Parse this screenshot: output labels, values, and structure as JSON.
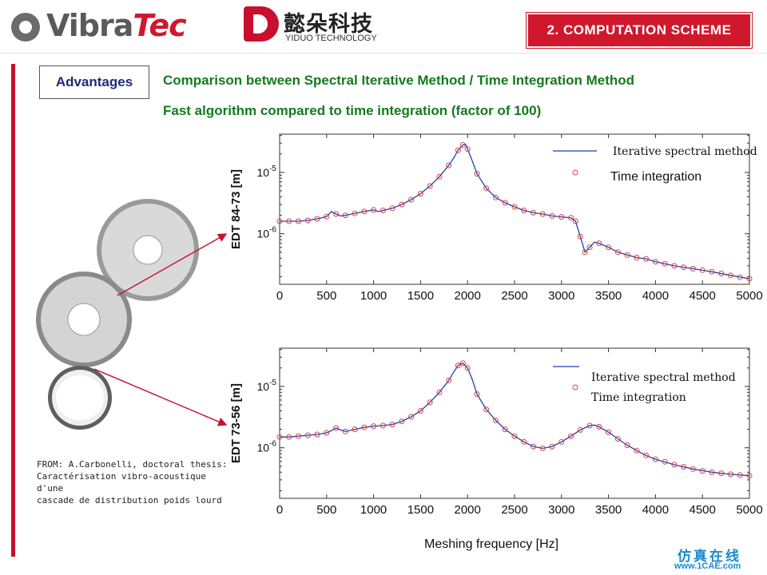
{
  "header": {
    "brand_left_a": "Vibra",
    "brand_left_b": "Tec",
    "brand_right_cn": "懿朵科技",
    "brand_right_en": "YIDUO TECHNOLOGY",
    "section_title": "2. COMPUTATION SCHEME",
    "accent_color": "#d0182d"
  },
  "content": {
    "advantages_label": "Advantages",
    "line1": "Comparison between Spectral Iterative Method / Time Integration Method",
    "line2": "Fast algorithm compared to time integration (factor of 100)",
    "source_lines": [
      "FROM: A.Carbonelli, doctoral thesis:",
      "Caractérisation vibro-acoustique d'une",
      "cascade de distribution poids lourd"
    ],
    "xlabel": "Meshing frequency [Hz]"
  },
  "watermark": {
    "cn": "仿真在线",
    "en": "www.1CAE.com"
  },
  "chart_data": [
    {
      "type": "line",
      "ylabel": "EDT 84-73 [m]",
      "xlim": [
        0,
        5000
      ],
      "xticks": [
        0,
        500,
        1000,
        1500,
        2000,
        2500,
        3000,
        3500,
        4000,
        4500,
        5000
      ],
      "yscale": "log",
      "ytick_labels": [
        "10^-5",
        "10^-6"
      ],
      "legend": [
        "Iterative spectral method",
        "Time integration"
      ],
      "legend_position": "top-right",
      "series": [
        {
          "name": "Iterative spectral method",
          "color": "#1f3fb0",
          "x": [
            0,
            100,
            200,
            300,
            400,
            500,
            550,
            600,
            650,
            700,
            800,
            900,
            1000,
            1050,
            1100,
            1200,
            1300,
            1400,
            1500,
            1600,
            1700,
            1800,
            1850,
            1900,
            1950,
            1980,
            2000,
            2050,
            2100,
            2200,
            2300,
            2400,
            2500,
            2600,
            2700,
            2800,
            2900,
            3000,
            3100,
            3150,
            3200,
            3250,
            3300,
            3350,
            3400,
            3500,
            3600,
            3700,
            3800,
            3900,
            4000,
            4200,
            4400,
            4600,
            4800,
            5000
          ],
          "y": [
            1.6e-06,
            1.6e-06,
            1.6e-06,
            1.65e-06,
            1.75e-06,
            1.9e-06,
            2.3e-06,
            2.1e-06,
            1.95e-06,
            2e-06,
            2.15e-06,
            2.3e-06,
            2.45e-06,
            2.3e-06,
            2.4e-06,
            2.6e-06,
            3e-06,
            3.6e-06,
            4.5e-06,
            6e-06,
            8.5e-06,
            1.3e-05,
            1.7e-05,
            2.3e-05,
            2.8e-05,
            2.85e-05,
            2.4e-05,
            1.55e-05,
            9.5e-06,
            5.5e-06,
            3.9e-06,
            3.2e-06,
            2.75e-06,
            2.4e-06,
            2.2e-06,
            2.1e-06,
            1.95e-06,
            1.88e-06,
            1.82e-06,
            1.6e-06,
            9e-07,
            5e-07,
            6e-07,
            7.3e-07,
            7e-07,
            6e-07,
            5e-07,
            4.5e-07,
            4.1e-07,
            3.9e-07,
            3.5e-07,
            3e-07,
            2.7e-07,
            2.4e-07,
            2.1e-07,
            1.85e-07
          ]
        },
        {
          "name": "Time integration",
          "color": "#e04040",
          "x": [
            0,
            100,
            200,
            300,
            400,
            500,
            600,
            700,
            800,
            900,
            1000,
            1100,
            1200,
            1300,
            1400,
            1500,
            1600,
            1700,
            1800,
            1900,
            1950,
            2000,
            2100,
            2200,
            2300,
            2400,
            2500,
            2600,
            2700,
            2800,
            2900,
            3000,
            3100,
            3150,
            3200,
            3250,
            3300,
            3400,
            3500,
            3600,
            3700,
            3800,
            3900,
            4000,
            4100,
            4200,
            4300,
            4400,
            4500,
            4600,
            4700,
            4800,
            4900,
            5000
          ],
          "y": [
            1.6e-06,
            1.6e-06,
            1.6e-06,
            1.65e-06,
            1.75e-06,
            1.9e-06,
            2.1e-06,
            2e-06,
            2.15e-06,
            2.3e-06,
            2.45e-06,
            2.4e-06,
            2.6e-06,
            3e-06,
            3.6e-06,
            4.5e-06,
            6e-06,
            8.5e-06,
            1.3e-05,
            2.3e-05,
            2.8e-05,
            2.4e-05,
            9.5e-06,
            5.5e-06,
            3.9e-06,
            3.2e-06,
            2.75e-06,
            2.4e-06,
            2.2e-06,
            2.1e-06,
            1.95e-06,
            1.88e-06,
            1.82e-06,
            1.6e-06,
            9e-07,
            5e-07,
            6e-07,
            7e-07,
            6e-07,
            5e-07,
            4.5e-07,
            4.1e-07,
            3.9e-07,
            3.5e-07,
            3.25e-07,
            3e-07,
            2.85e-07,
            2.7e-07,
            2.55e-07,
            2.4e-07,
            2.25e-07,
            2.1e-07,
            1.95e-07,
            1.85e-07
          ]
        }
      ]
    },
    {
      "type": "line",
      "ylabel": "EDT 73-56 [m]",
      "xlim": [
        0,
        5000
      ],
      "xticks": [
        0,
        500,
        1000,
        1500,
        2000,
        2500,
        3000,
        3500,
        4000,
        4500,
        5000
      ],
      "yscale": "log",
      "ytick_labels": [
        "10^-5",
        "10^-6"
      ],
      "legend": [
        "Iterative spectral method",
        "Time integration"
      ],
      "legend_position": "top-right",
      "series": [
        {
          "name": "Iterative spectral method",
          "color": "#1f3fb0",
          "x": [
            0,
            100,
            200,
            300,
            400,
            500,
            550,
            600,
            650,
            700,
            800,
            900,
            1000,
            1100,
            1200,
            1300,
            1400,
            1500,
            1600,
            1700,
            1800,
            1850,
            1900,
            1950,
            2000,
            2050,
            2100,
            2200,
            2300,
            2400,
            2500,
            2600,
            2700,
            2800,
            2900,
            3000,
            3100,
            3200,
            3300,
            3350,
            3400,
            3500,
            3600,
            3700,
            3800,
            3900,
            4000,
            4200,
            4400,
            4600,
            4800,
            5000
          ],
          "y": [
            1.5e-06,
            1.5e-06,
            1.55e-06,
            1.6e-06,
            1.65e-06,
            1.75e-06,
            1.9e-06,
            2.1e-06,
            1.95e-06,
            1.85e-06,
            2e-06,
            2.15e-06,
            2.25e-06,
            2.3e-06,
            2.4e-06,
            2.7e-06,
            3.2e-06,
            4e-06,
            5.5e-06,
            8e-06,
            1.25e-05,
            1.7e-05,
            2.2e-05,
            2.4e-05,
            2e-05,
            1.3e-05,
            7.5e-06,
            4.2e-06,
            2.8e-06,
            2e-06,
            1.55e-06,
            1.25e-06,
            1.05e-06,
            9.8e-07,
            1.05e-06,
            1.25e-06,
            1.55e-06,
            1.95e-06,
            2.3e-06,
            2.35e-06,
            2.2e-06,
            1.8e-06,
            1.4e-06,
            1.1e-06,
            9e-07,
            7.5e-07,
            6.5e-07,
            5.3e-07,
            4.5e-07,
            4e-07,
            3.7e-07,
            3.5e-07
          ]
        },
        {
          "name": "Time integration",
          "color": "#e04040",
          "x": [
            0,
            100,
            200,
            300,
            400,
            500,
            600,
            700,
            800,
            900,
            1000,
            1100,
            1200,
            1300,
            1400,
            1500,
            1600,
            1700,
            1800,
            1900,
            1950,
            2000,
            2100,
            2200,
            2300,
            2400,
            2500,
            2600,
            2700,
            2800,
            2900,
            3000,
            3100,
            3200,
            3300,
            3400,
            3500,
            3600,
            3700,
            3800,
            3900,
            4000,
            4100,
            4200,
            4300,
            4400,
            4500,
            4600,
            4700,
            4800,
            4900,
            5000
          ],
          "y": [
            1.5e-06,
            1.5e-06,
            1.55e-06,
            1.6e-06,
            1.65e-06,
            1.75e-06,
            2.1e-06,
            1.85e-06,
            2e-06,
            2.15e-06,
            2.25e-06,
            2.3e-06,
            2.4e-06,
            2.7e-06,
            3.2e-06,
            4e-06,
            5.5e-06,
            8e-06,
            1.25e-05,
            2.2e-05,
            2.4e-05,
            2e-05,
            7.5e-06,
            4.2e-06,
            2.8e-06,
            2e-06,
            1.55e-06,
            1.25e-06,
            1.05e-06,
            9.8e-07,
            1.05e-06,
            1.25e-06,
            1.55e-06,
            1.95e-06,
            2.3e-06,
            2.2e-06,
            1.8e-06,
            1.4e-06,
            1.1e-06,
            9e-07,
            7.5e-07,
            6.5e-07,
            5.9e-07,
            5.3e-07,
            4.9e-07,
            4.5e-07,
            4.2e-07,
            4e-07,
            3.85e-07,
            3.7e-07,
            3.6e-07,
            3.5e-07
          ]
        }
      ]
    }
  ]
}
